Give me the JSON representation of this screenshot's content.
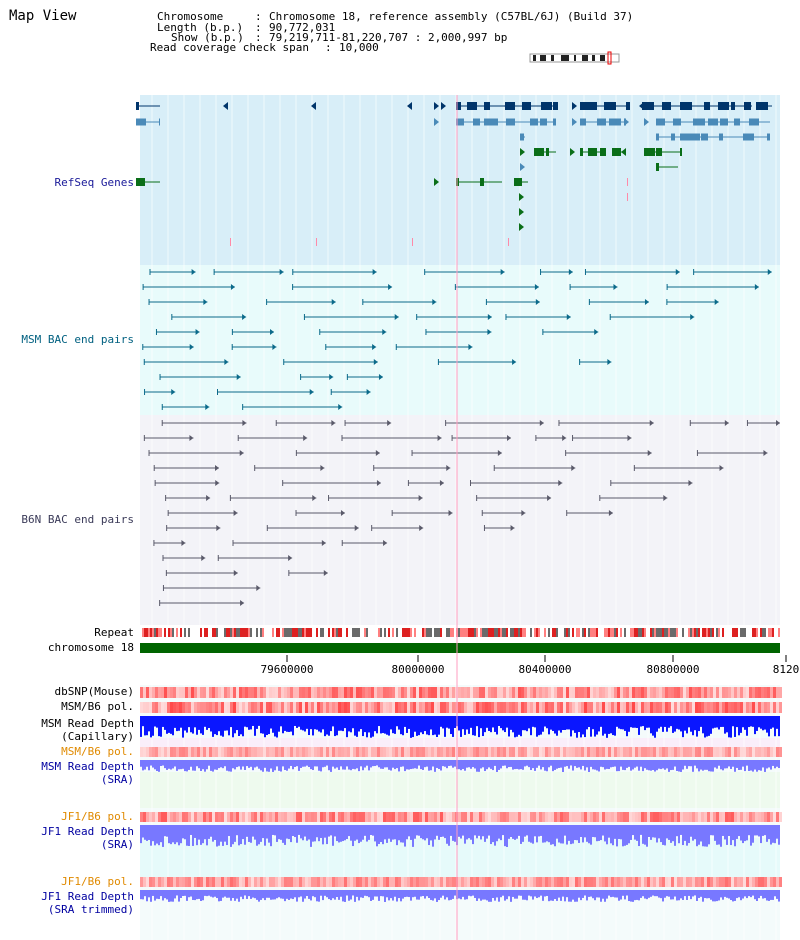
{
  "view_title": "Map View",
  "info": {
    "chromosome_key": "Chromosome    ",
    "chromosome_value": "Chromosome 18, reference assembly (C57BL/6J) (Build 37)",
    "length_key": "Length (b.p.)",
    "length_value": "90,772,031",
    "show_key": "Show (b.p.)",
    "show_value": "79,219,711-81,220,707 : 2,000,997 bp",
    "coverage_key": "Read coverage check span",
    "coverage_value": "10,000"
  },
  "tracks": {
    "refseq": "RefSeq Genes",
    "msm_bac": "MSM BAC end pairs",
    "b6n_bac": "B6N BAC end pairs",
    "repeat": "Repeat",
    "chrom": "chromosome 18",
    "dbsnp": "dbSNP(Mouse)",
    "msm_pol_1": "MSM/B6 pol.",
    "msm_depth_cap_1": "MSM Read Depth",
    "msm_depth_cap_2": "(Capillary)",
    "msm_pol_2": "MSM/B6 pol.",
    "msm_depth_sra_1": "MSM Read Depth",
    "msm_depth_sra_2": "(SRA)",
    "jf1_pol_1": "JF1/B6 pol.",
    "jf1_depth_1": "JF1 Read Depth",
    "jf1_depth_2": "(SRA)",
    "jf1_pol_2": "JF1/B6 pol.",
    "jf1_trim_1": "JF1 Read Depth",
    "jf1_trim_2": "(SRA trimmed)"
  },
  "axis": {
    "ticks": [
      "79600000",
      "80000000",
      "80400000",
      "80800000",
      "8120"
    ]
  },
  "colors": {
    "refseq_bg": "#d8eef8",
    "msm_bg": "#e8fbfb",
    "b6n_bg": "#f3f3f8",
    "chrom_bar": "#006400",
    "gene_dark": "#00356b",
    "gene_mid": "#4a8ab8",
    "gene_green": "#0a6e18",
    "depth_blue": "#0a16ff",
    "depth_light": "#7878ff",
    "pol_red": "#ff4a4a"
  }
}
